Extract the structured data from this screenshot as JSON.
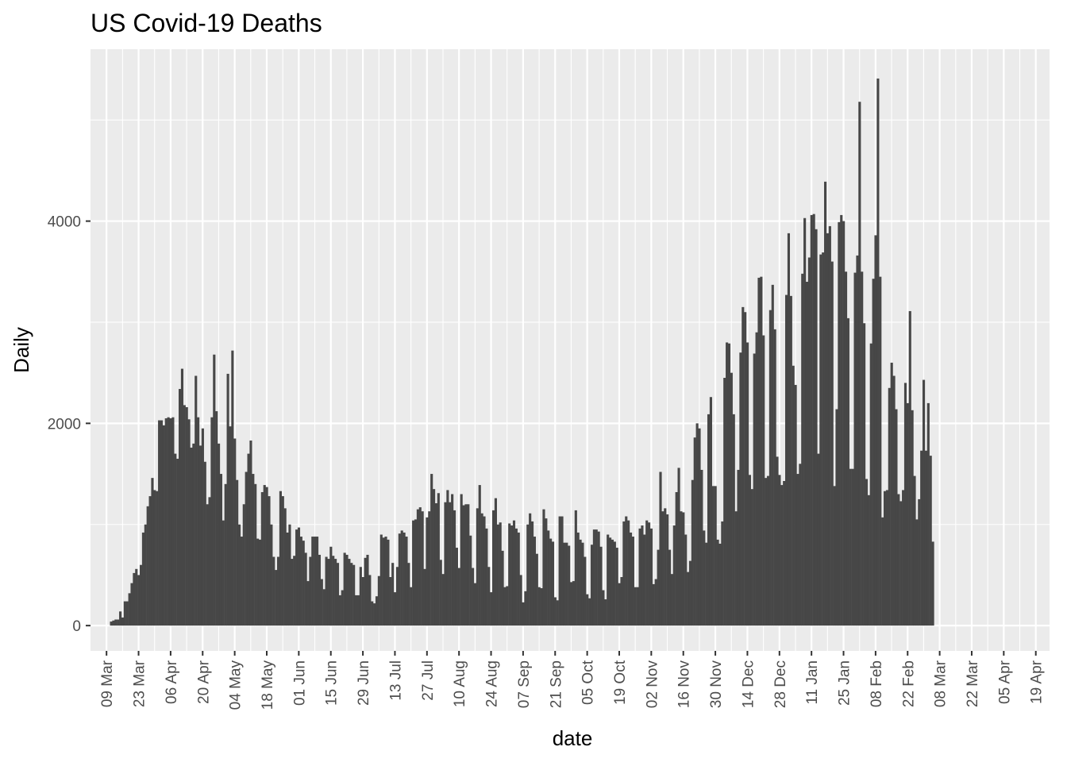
{
  "chart_data": {
    "type": "bar",
    "title": "US Covid-19 Deaths",
    "xlabel": "date",
    "ylabel": "Daily",
    "x_ticks": [
      "09 Mar",
      "23 Mar",
      "06 Apr",
      "20 Apr",
      "04 May",
      "18 May",
      "01 Jun",
      "15 Jun",
      "29 Jun",
      "13 Jul",
      "27 Jul",
      "10 Aug",
      "24 Aug",
      "07 Sep",
      "21 Sep",
      "05 Oct",
      "19 Oct",
      "02 Nov",
      "16 Nov",
      "30 Nov",
      "14 Dec",
      "28 Dec",
      "11 Jan",
      "25 Jan",
      "08 Feb",
      "22 Feb",
      "08 Mar",
      "22 Mar",
      "05 Apr",
      "19 Apr"
    ],
    "xlim": [
      "2020-03-02",
      "2021-04-25"
    ],
    "first_bar_date": "2020-03-11",
    "y_ticks": [
      0,
      2000,
      4000
    ],
    "ylim": [
      -250,
      5700
    ],
    "grid": true,
    "colors": {
      "panel": "#ebebeb",
      "grid": "#ffffff",
      "bar": "#474747"
    },
    "values": [
      40,
      50,
      60,
      60,
      140,
      80,
      240,
      240,
      320,
      420,
      520,
      560,
      500,
      600,
      920,
      1000,
      1180,
      1280,
      1460,
      1340,
      1330,
      2030,
      2030,
      1980,
      2050,
      2060,
      2050,
      2060,
      1700,
      1650,
      2340,
      2540,
      2180,
      2160,
      2040,
      1760,
      1800,
      2470,
      2060,
      1780,
      1950,
      1620,
      1200,
      1270,
      2060,
      2680,
      2120,
      1800,
      1500,
      1040,
      1400,
      2490,
      1970,
      2720,
      1850,
      1440,
      1000,
      880,
      1200,
      1520,
      1700,
      1830,
      1500,
      1400,
      860,
      850,
      1320,
      1390,
      1370,
      1280,
      1000,
      680,
      550,
      680,
      1330,
      1280,
      1160,
      920,
      1000,
      660,
      690,
      950,
      970,
      880,
      840,
      720,
      440,
      680,
      880,
      880,
      880,
      700,
      460,
      360,
      680,
      660,
      780,
      690,
      660,
      620,
      300,
      350,
      720,
      700,
      660,
      620,
      600,
      300,
      300,
      580,
      480,
      670,
      700,
      500,
      240,
      220,
      290,
      490,
      900,
      870,
      880,
      850,
      480,
      620,
      330,
      580,
      910,
      940,
      920,
      880,
      620,
      380,
      1040,
      1050,
      1150,
      1170,
      1130,
      560,
      1070,
      1130,
      1500,
      1350,
      1210,
      1310,
      650,
      510,
      1220,
      1340,
      1220,
      1300,
      1140,
      770,
      570,
      1300,
      1190,
      1200,
      1200,
      890,
      570,
      420,
      1160,
      1390,
      1110,
      1080,
      960,
      580,
      330,
      1140,
      1260,
      1000,
      1020,
      740,
      380,
      390,
      1010,
      990,
      1040,
      960,
      920,
      500,
      230,
      340,
      1000,
      1110,
      1030,
      880,
      710,
      380,
      370,
      1150,
      1060,
      940,
      860,
      830,
      280,
      250,
      1080,
      1080,
      820,
      820,
      790,
      430,
      440,
      1140,
      920,
      850,
      820,
      680,
      310,
      270,
      800,
      950,
      950,
      930,
      780,
      350,
      260,
      900,
      870,
      850,
      830,
      770,
      420,
      480,
      1030,
      1080,
      1040,
      920,
      880,
      380,
      380,
      960,
      990,
      900,
      1040,
      1020,
      960,
      410,
      460,
      750,
      1520,
      1130,
      1160,
      1100,
      750,
      510,
      990,
      1320,
      1560,
      1130,
      1120,
      900,
      530,
      640,
      1440,
      1860,
      2000,
      1950,
      1540,
      940,
      820,
      2090,
      2260,
      1380,
      1380,
      850,
      810,
      1030,
      2450,
      2800,
      2790,
      2500,
      2090,
      1130,
      1540,
      2700,
      3150,
      3100,
      2800,
      1490,
      1350,
      2690,
      2900,
      3440,
      3450,
      2870,
      1460,
      1480,
      3120,
      3370,
      2930,
      1670,
      1490,
      1390,
      1430,
      3270,
      3880,
      3260,
      2570,
      2380,
      1500,
      1600,
      3480,
      4030,
      3400,
      3640,
      4060,
      4070,
      3920,
      1700,
      3670,
      3690,
      4390,
      3880,
      3950,
      3600,
      1380,
      2140,
      3990,
      4060,
      4000,
      3500,
      3040,
      1550,
      1550,
      3490,
      3660,
      5180,
      3500,
      2990,
      1450,
      1290,
      2790,
      3430,
      3860,
      5410,
      3450,
      1070,
      1330,
      1340,
      2350,
      2600,
      2470,
      2140,
      1300,
      1230,
      1340,
      2400,
      2200,
      3110,
      2130,
      1480,
      1050,
      1250,
      1730,
      2430,
      1730,
      2200,
      1680,
      830
    ]
  }
}
